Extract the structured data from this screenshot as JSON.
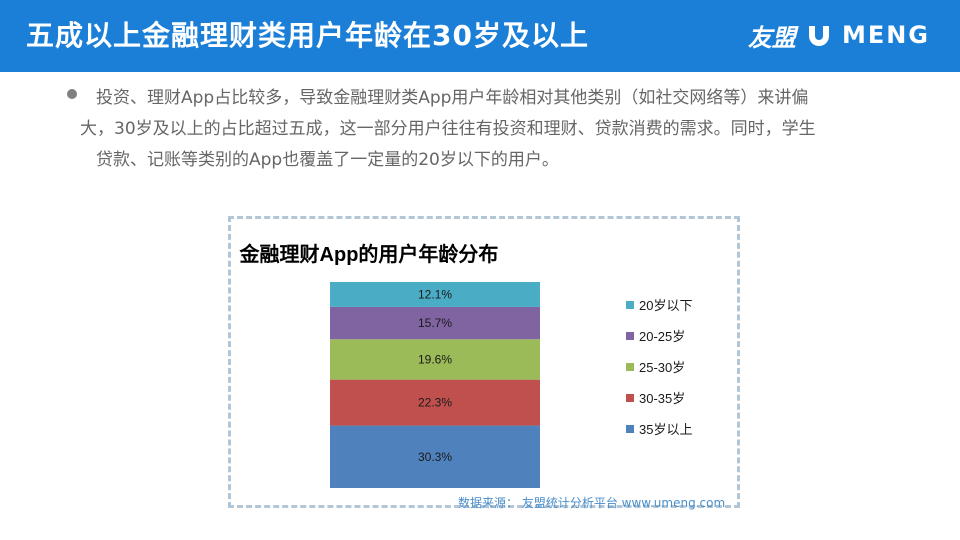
{
  "header": {
    "title": "五成以上金融理财类用户年龄在30岁及以上",
    "logo_cn": "友盟",
    "logo_en": "MENG"
  },
  "body": {
    "lines": [
      "投资、理财App占比较多，导致金融理财类App用户年龄相对其他类别（如社交网络等）来讲偏",
      "大，30岁及以上的占比超过五成，这一部分用户往往有投资和理财、贷款消费的需求。同时，学生",
      "贷款、记账等类别的App也覆盖了一定量的20岁以下的用户。"
    ]
  },
  "chart_data": {
    "type": "bar",
    "stacked": true,
    "title": "金融理财App的用户年龄分布",
    "xlabel": "",
    "ylabel": "",
    "ylim": [
      0,
      100
    ],
    "legend_position": "right",
    "series": [
      {
        "name": "35岁以上",
        "values": [
          30.3
        ],
        "label": "30.3%",
        "color": "#4f81bd"
      },
      {
        "name": "30-35岁",
        "values": [
          22.3
        ],
        "label": "22.3%",
        "color": "#c0504d"
      },
      {
        "name": "25-30岁",
        "values": [
          19.6
        ],
        "label": "19.6%",
        "color": "#9bbb59"
      },
      {
        "name": "20-25岁",
        "values": [
          15.7
        ],
        "label": "15.7%",
        "color": "#8064a2"
      },
      {
        "name": "20岁以下",
        "values": [
          12.1
        ],
        "label": "12.1%",
        "color": "#4bacc6"
      }
    ]
  },
  "source": "数据来源： 友盟统计分析平台 www.umeng.com",
  "colors": {
    "header_bg": "#1b7fd8",
    "frame_border": "#b3c6d6"
  }
}
